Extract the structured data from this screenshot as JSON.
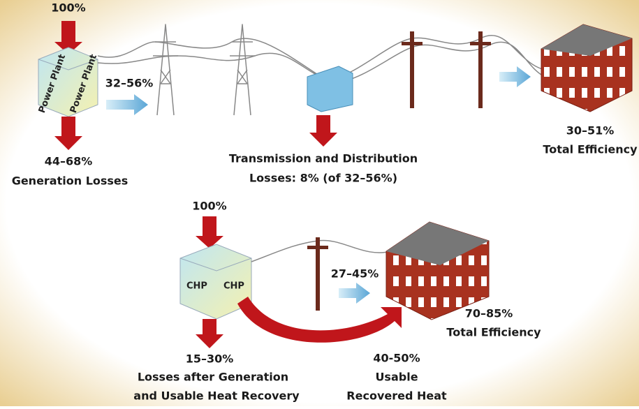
{
  "conventional": {
    "input": "100%",
    "plant_label": "Power Plant",
    "delivered": "32–56%",
    "generation_loss": "44–68%",
    "generation_loss_label": "Generation Losses",
    "td_loss_line1": "Transmission and Distribution",
    "td_loss_line2": "Losses: 8% (of 32–56%)",
    "efficiency": "30–51%",
    "efficiency_label": "Total Efficiency"
  },
  "chp": {
    "input": "100%",
    "plant_label": "CHP",
    "delivered": "27–45%",
    "efficiency": "70–85%",
    "efficiency_label": "Total Efficiency",
    "loss": "15–30%",
    "loss_line1": "Losses after Generation",
    "loss_line2": "and Usable Heat Recovery",
    "heat": "40-50%",
    "heat_line1": "Usable",
    "heat_line2": "Recovered Heat"
  }
}
